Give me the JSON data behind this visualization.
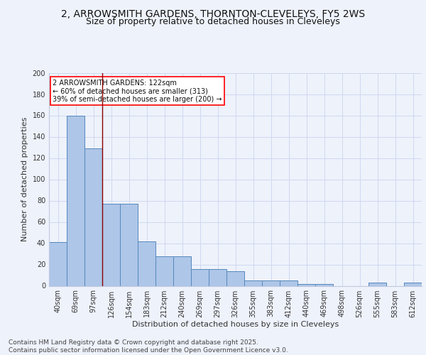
{
  "title_line1": "2, ARROWSMITH GARDENS, THORNTON-CLEVELEYS, FY5 2WS",
  "title_line2": "Size of property relative to detached houses in Cleveleys",
  "xlabel": "Distribution of detached houses by size in Cleveleys",
  "ylabel": "Number of detached properties",
  "categories": [
    "40sqm",
    "69sqm",
    "97sqm",
    "126sqm",
    "154sqm",
    "183sqm",
    "212sqm",
    "240sqm",
    "269sqm",
    "297sqm",
    "326sqm",
    "355sqm",
    "383sqm",
    "412sqm",
    "440sqm",
    "469sqm",
    "498sqm",
    "526sqm",
    "555sqm",
    "583sqm",
    "612sqm"
  ],
  "values": [
    41,
    160,
    129,
    77,
    77,
    42,
    28,
    28,
    16,
    16,
    14,
    5,
    5,
    5,
    2,
    2,
    0,
    0,
    3,
    0,
    3
  ],
  "bar_color": "#aec6e8",
  "bar_edge_color": "#5588bb",
  "annotation_text": "2 ARROWSMITH GARDENS: 122sqm\n← 60% of detached houses are smaller (313)\n39% of semi-detached houses are larger (200) →",
  "footer": "Contains HM Land Registry data © Crown copyright and database right 2025.\nContains public sector information licensed under the Open Government Licence v3.0.",
  "ylim": [
    0,
    200
  ],
  "yticks": [
    0,
    20,
    40,
    60,
    80,
    100,
    120,
    140,
    160,
    180,
    200
  ],
  "bg_color": "#eef2fb",
  "grid_color": "#d0d8f0",
  "title_fontsize": 10,
  "subtitle_fontsize": 9,
  "axis_label_fontsize": 8,
  "tick_fontsize": 7,
  "footer_fontsize": 6.5
}
